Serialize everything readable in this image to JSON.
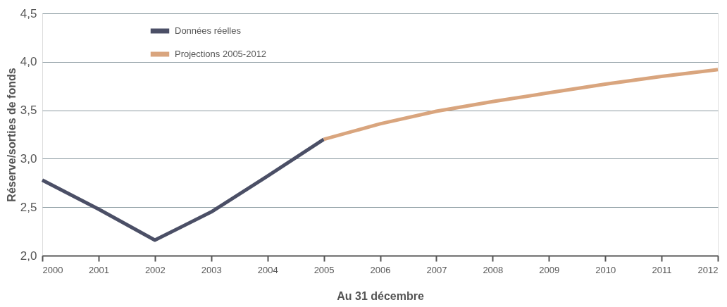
{
  "chart_data": {
    "type": "line",
    "ylabel": "Réserve/sorties de fonds",
    "xlabel": "Au 31 décembre",
    "series": [
      {
        "name": "Données réelles",
        "color": "#4b4f66",
        "x": [
          2000,
          2001,
          2002,
          2003,
          2004,
          2005
        ],
        "values": [
          2.78,
          2.48,
          2.16,
          2.45,
          2.82,
          3.2
        ]
      },
      {
        "name": "Projections 2005-2012",
        "color": "#d9a57e",
        "x": [
          2005,
          2006,
          2007,
          2008,
          2009,
          2010,
          2011,
          2012
        ],
        "values": [
          3.2,
          3.36,
          3.49,
          3.59,
          3.68,
          3.77,
          3.85,
          3.92
        ]
      }
    ],
    "xlim": [
      2000,
      2012
    ],
    "xticks": [
      2000,
      2001,
      2002,
      2003,
      2004,
      2005,
      2006,
      2007,
      2008,
      2009,
      2010,
      2011,
      2012
    ],
    "ylim": [
      2.0,
      4.5
    ],
    "yticks": [
      {
        "value": 2.0,
        "label": "2,0"
      },
      {
        "value": 2.5,
        "label": "2,5"
      },
      {
        "value": 3.0,
        "label": "3,0"
      },
      {
        "value": 3.5,
        "label": "3,5"
      },
      {
        "value": 4.0,
        "label": "4,0"
      },
      {
        "value": 4.5,
        "label": "4,5"
      }
    ],
    "grid": "y",
    "legend": "top left",
    "marker": "none",
    "line_style": "solid"
  }
}
